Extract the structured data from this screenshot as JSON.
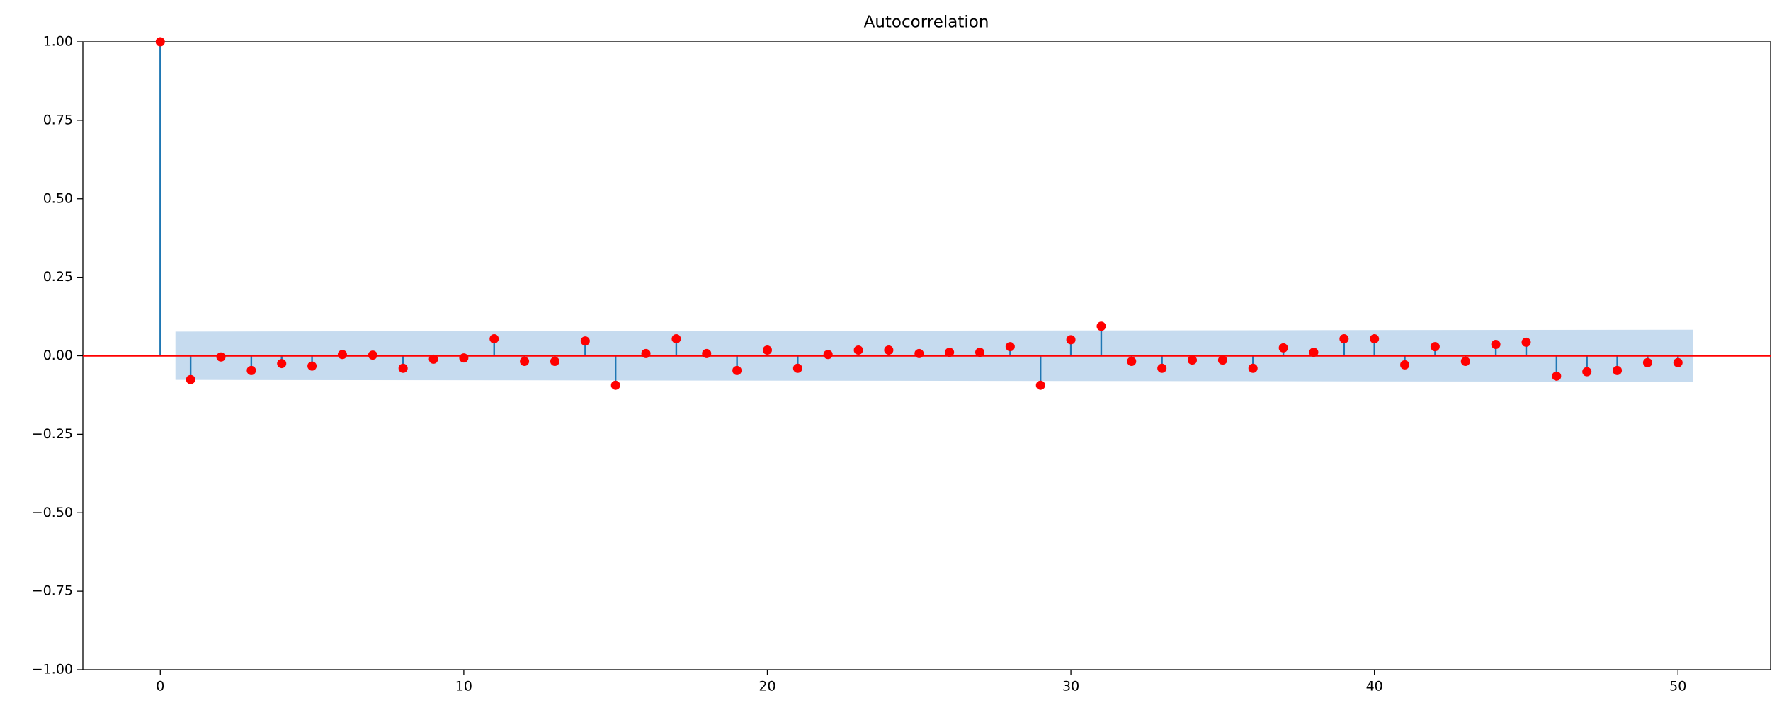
{
  "chart_data": {
    "type": "stem",
    "title": "Autocorrelation",
    "x": [
      0,
      1,
      2,
      3,
      4,
      5,
      6,
      7,
      8,
      9,
      10,
      11,
      12,
      13,
      14,
      15,
      16,
      17,
      18,
      19,
      20,
      21,
      22,
      23,
      24,
      25,
      26,
      27,
      28,
      29,
      30,
      31,
      32,
      33,
      34,
      35,
      36,
      37,
      38,
      39,
      40,
      41,
      42,
      43,
      44,
      45,
      46,
      47,
      48,
      49,
      50
    ],
    "values": [
      1.0,
      -0.076,
      -0.004,
      -0.047,
      -0.025,
      -0.033,
      0.004,
      0.002,
      -0.04,
      -0.011,
      -0.007,
      0.054,
      -0.018,
      -0.018,
      0.047,
      -0.094,
      0.007,
      0.054,
      0.007,
      -0.047,
      0.018,
      -0.04,
      0.004,
      0.018,
      0.018,
      0.007,
      0.011,
      0.011,
      0.029,
      -0.094,
      0.051,
      0.094,
      -0.018,
      -0.04,
      -0.014,
      -0.014,
      -0.04,
      0.025,
      0.011,
      0.054,
      0.054,
      -0.029,
      0.029,
      -0.018,
      0.036,
      0.043,
      -0.065,
      -0.051,
      -0.047,
      -0.022,
      -0.022
    ],
    "stem_color": "#1f77b4",
    "marker_color": "#ff0000",
    "zero_line_color": "#ff0000",
    "confint": {
      "x": [
        1,
        50
      ],
      "upper": [
        0.077,
        0.083
      ],
      "color": "#c6dbef"
    },
    "xlim": [
      -2.55,
      53.05
    ],
    "xticks": [
      0,
      10,
      20,
      30,
      40,
      50
    ],
    "ylim": [
      -1,
      1
    ],
    "yticks": [
      {
        "value": -1,
        "label": "−1.00"
      },
      {
        "value": -0.75,
        "label": "−0.75"
      },
      {
        "value": -0.5,
        "label": "−0.50"
      },
      {
        "value": -0.25,
        "label": "−0.25"
      },
      {
        "value": 0,
        "label": "0.00"
      },
      {
        "value": 0.25,
        "label": "0.25"
      },
      {
        "value": 0.5,
        "label": "0.50"
      },
      {
        "value": 0.75,
        "label": "0.75"
      },
      {
        "value": 1,
        "label": "1.00"
      }
    ]
  }
}
